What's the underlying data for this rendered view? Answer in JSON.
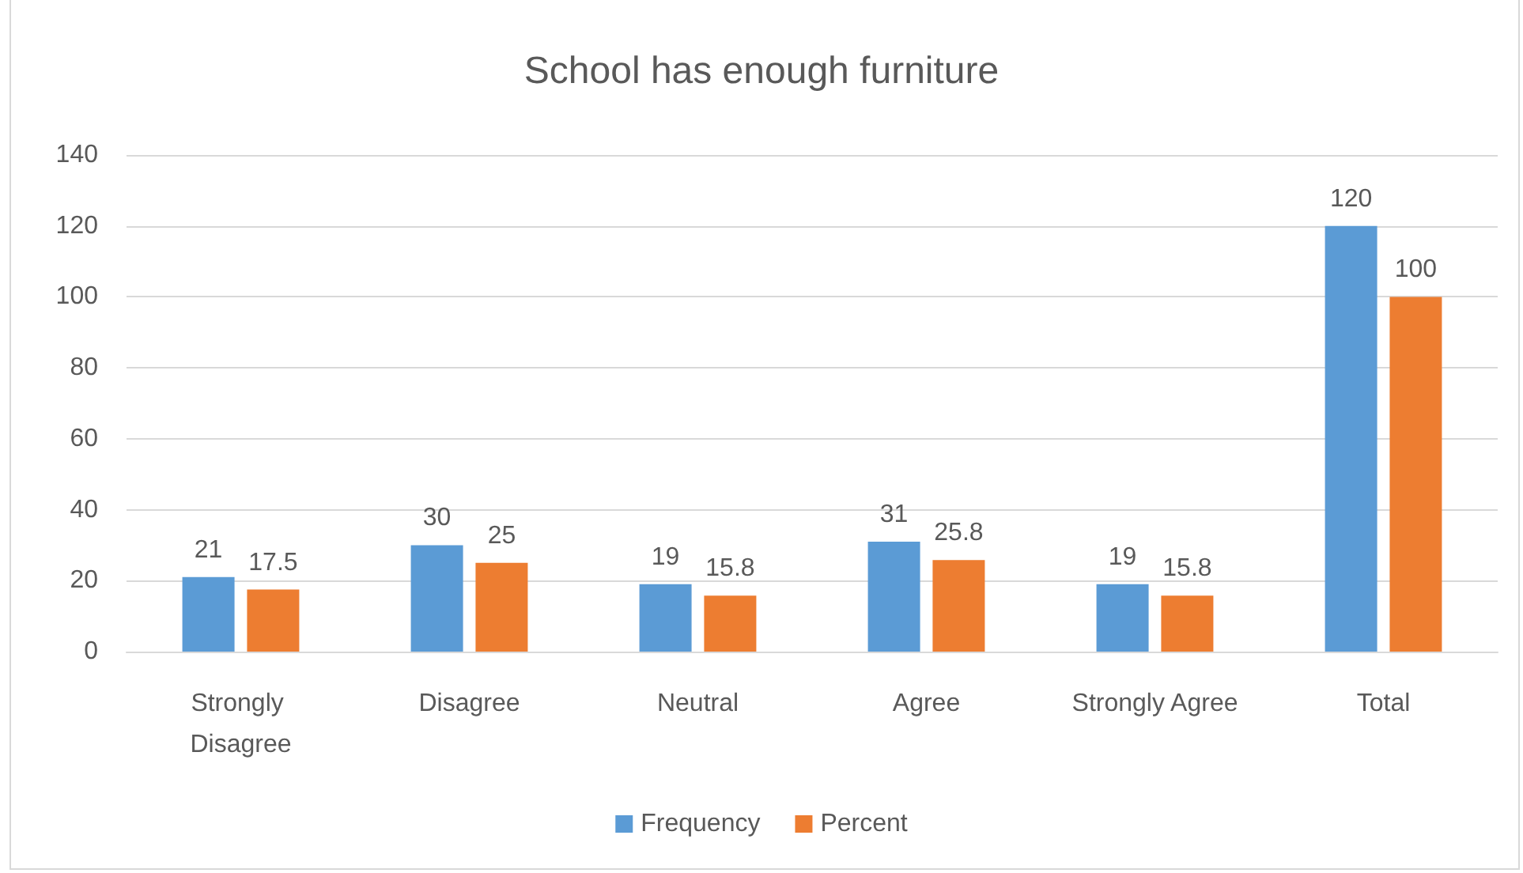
{
  "chart_data": {
    "type": "bar",
    "title": "School has enough furniture",
    "categories": [
      "Strongly Disagree",
      "Disagree",
      "Neutral",
      "Agree",
      "Strongly Agree",
      "Total"
    ],
    "series": [
      {
        "name": "Frequency",
        "color": "#5b9bd5",
        "values": [
          21,
          30,
          19,
          31,
          19,
          120
        ]
      },
      {
        "name": "Percent",
        "color": "#ed7d31",
        "values": [
          17.5,
          25,
          15.8,
          25.8,
          15.8,
          100
        ]
      }
    ],
    "ylim": [
      0,
      140
    ],
    "yticks": [
      0,
      20,
      40,
      60,
      80,
      100,
      120,
      140
    ],
    "grid": "y",
    "legend": "bottom",
    "data_labels": true
  }
}
